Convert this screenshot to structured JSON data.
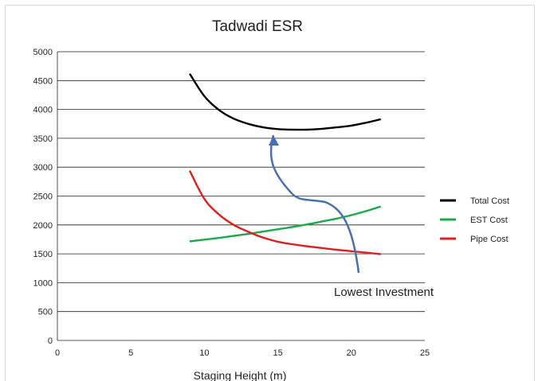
{
  "chart_data": {
    "type": "line",
    "title": "Tadwadi ESR",
    "xlabel": "Staging Height (m)",
    "ylabel": "",
    "xlim": [
      0,
      25
    ],
    "ylim": [
      0,
      5000
    ],
    "xticks": [
      0,
      5,
      10,
      15,
      20,
      25
    ],
    "yticks": [
      0,
      500,
      1000,
      1500,
      2000,
      2500,
      3000,
      3500,
      4000,
      4500,
      5000
    ],
    "grid": "horizontal",
    "legend_position": "right",
    "series": [
      {
        "name": "Total Cost",
        "color": "#000000",
        "x": [
          9,
          10,
          11,
          12,
          13,
          14,
          15,
          16,
          17,
          18,
          19,
          20,
          21,
          22
        ],
        "y": [
          4620,
          4230,
          3990,
          3840,
          3750,
          3690,
          3660,
          3650,
          3650,
          3665,
          3690,
          3720,
          3770,
          3830
        ]
      },
      {
        "name": "EST Cost",
        "color": "#1aaa4a",
        "x": [
          9,
          10,
          11,
          12,
          13,
          14,
          15,
          16,
          17,
          18,
          19,
          20,
          21,
          22
        ],
        "y": [
          1715,
          1745,
          1775,
          1810,
          1845,
          1885,
          1925,
          1965,
          2010,
          2060,
          2110,
          2170,
          2240,
          2320
        ]
      },
      {
        "name": "Pipe Cost",
        "color": "#e02020",
        "x": [
          9,
          10,
          11,
          12,
          13,
          14,
          15,
          16,
          17,
          18,
          19,
          20,
          21,
          22
        ],
        "y": [
          2940,
          2450,
          2180,
          2000,
          1880,
          1780,
          1710,
          1665,
          1630,
          1600,
          1570,
          1545,
          1520,
          1495
        ]
      }
    ],
    "annotations": [
      {
        "text": "Lowest Investment",
        "x": 20.5,
        "y": 1200,
        "arrow_color": "#4a6fb0"
      }
    ]
  }
}
